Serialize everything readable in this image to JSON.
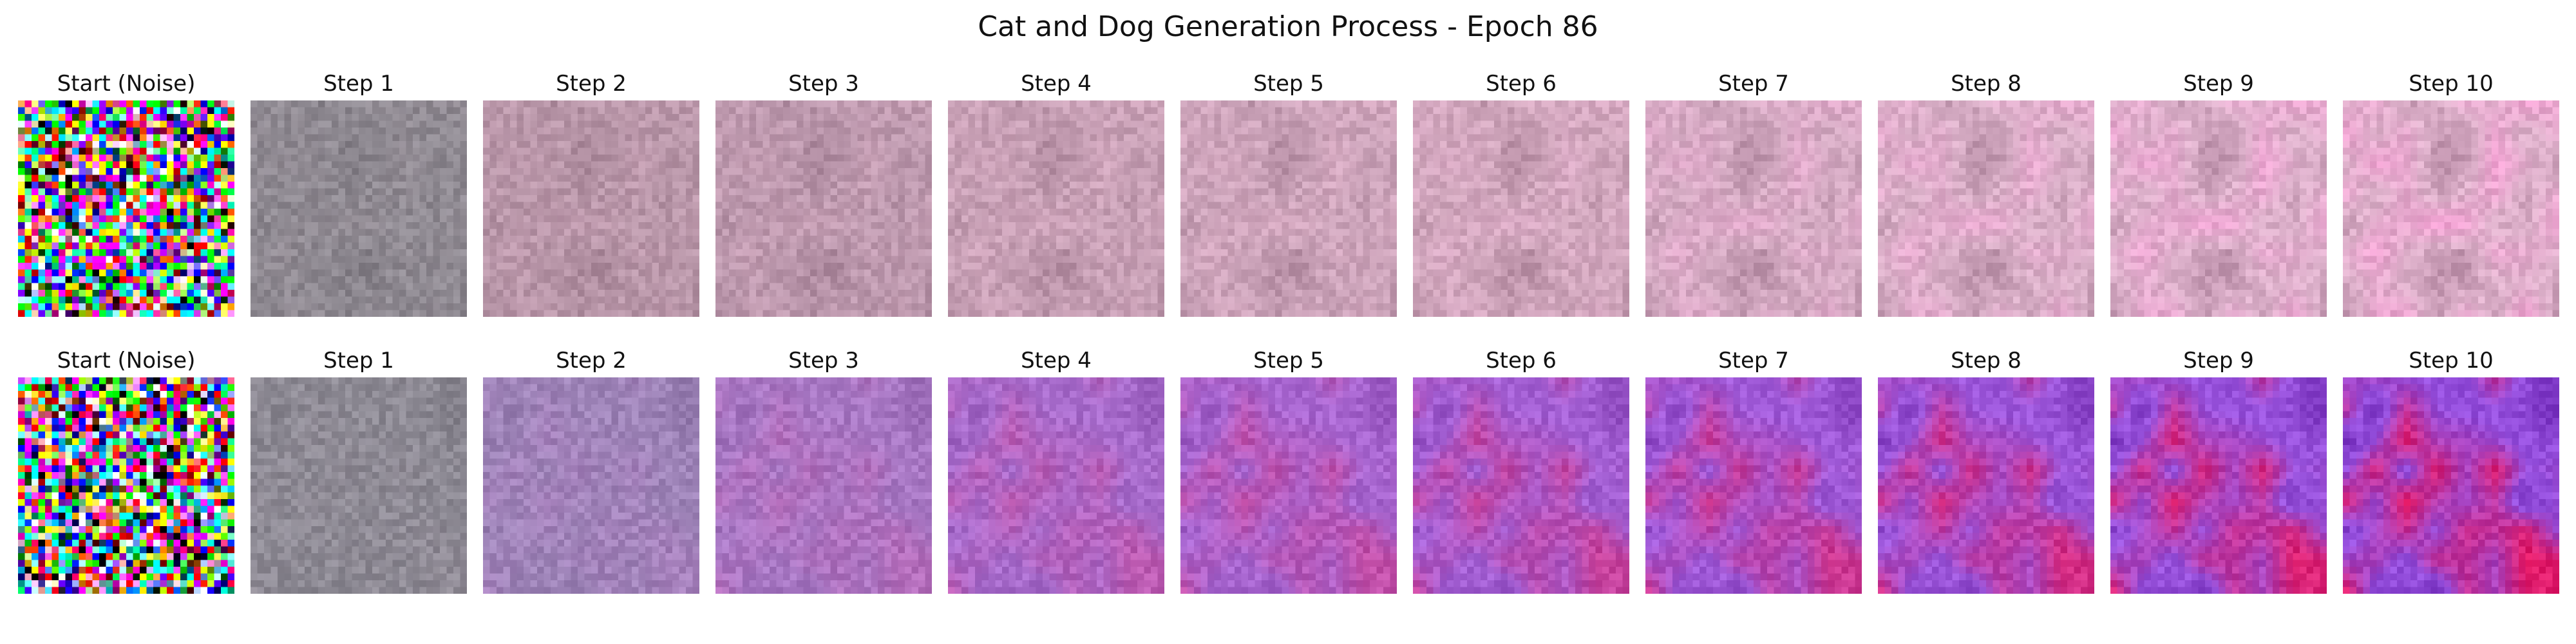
{
  "figure": {
    "title": "Cat and Dog Generation Process - Epoch 86",
    "rows": [
      {
        "row": 1,
        "panels": [
          {
            "title": "Start (Noise)",
            "palette": {
              "base": "#9a8c96",
              "tint": "#9a8c96"
            }
          },
          {
            "title": "Step 1",
            "palette": {
              "base": "#8f8a92",
              "tint": "#958a93"
            }
          },
          {
            "title": "Step 2",
            "palette": {
              "base": "#b896a8",
              "tint": "#c49ab0"
            }
          },
          {
            "title": "Step 3",
            "palette": {
              "base": "#bc98ad",
              "tint": "#cba0b6"
            }
          },
          {
            "title": "Step 4",
            "palette": {
              "base": "#c69fb4",
              "tint": "#d3a6bd"
            }
          },
          {
            "title": "Step 5",
            "palette": {
              "base": "#cba3b9",
              "tint": "#d8a9c1"
            }
          },
          {
            "title": "Step 6",
            "palette": {
              "base": "#d0a6bc",
              "tint": "#dcaac6"
            }
          },
          {
            "title": "Step 7",
            "palette": {
              "base": "#d4aac2",
              "tint": "#e4a8cc"
            }
          },
          {
            "title": "Step 8",
            "palette": {
              "base": "#d8aec6",
              "tint": "#eaa8d0"
            }
          },
          {
            "title": "Step 9",
            "palette": {
              "base": "#dcb0ca",
              "tint": "#eea4d2"
            }
          },
          {
            "title": "Step 10",
            "palette": {
              "base": "#ddb0ca",
              "tint": "#f2a0d2"
            }
          }
        ]
      },
      {
        "row": 2,
        "panels": [
          {
            "title": "Start (Noise)",
            "palette": {
              "base": "#9a8c96",
              "tint": "#9a8c96"
            }
          },
          {
            "title": "Step 1",
            "palette": {
              "base": "#8d8a94",
              "tint": "#938a96"
            }
          },
          {
            "title": "Step 2",
            "palette": {
              "base": "#9e84b8",
              "tint": "#b07ac0"
            }
          },
          {
            "title": "Step 3",
            "palette": {
              "base": "#a878c4",
              "tint": "#c060b0"
            }
          },
          {
            "title": "Step 4",
            "palette": {
              "base": "#a86ccc",
              "tint": "#cc4c9c"
            }
          },
          {
            "title": "Step 5",
            "palette": {
              "base": "#a866d0",
              "tint": "#d04090"
            }
          },
          {
            "title": "Step 6",
            "palette": {
              "base": "#a460d4",
              "tint": "#d43484"
            }
          },
          {
            "title": "Step 7",
            "palette": {
              "base": "#a05ad8",
              "tint": "#d82c7c"
            }
          },
          {
            "title": "Step 8",
            "palette": {
              "base": "#9c56da",
              "tint": "#dc2474"
            }
          },
          {
            "title": "Step 9",
            "palette": {
              "base": "#9852dc",
              "tint": "#e01e6c"
            }
          },
          {
            "title": "Step 10",
            "palette": {
              "base": "#944edc",
              "tint": "#e41864"
            }
          }
        ]
      }
    ]
  }
}
